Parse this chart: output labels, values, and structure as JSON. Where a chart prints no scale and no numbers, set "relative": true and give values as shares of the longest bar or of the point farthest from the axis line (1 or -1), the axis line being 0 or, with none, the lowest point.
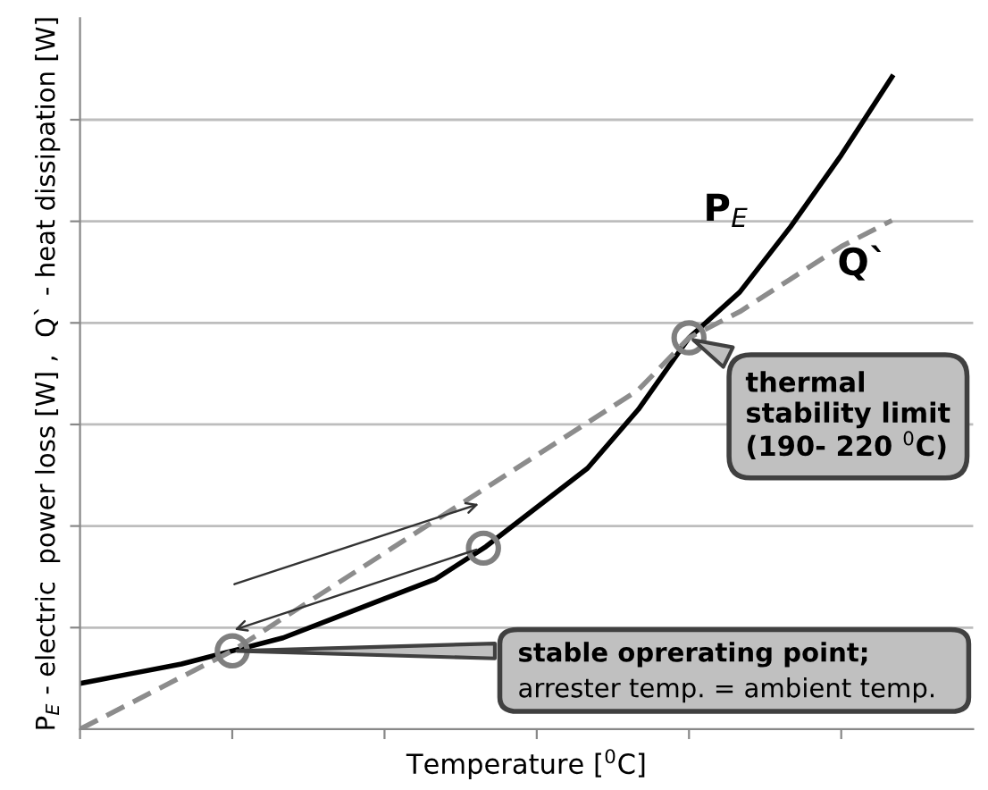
{
  "chart_data": {
    "type": "line",
    "relative": true,
    "xlabel": "Temperature [$^{0}$C]",
    "ylabel": "P$_{E}$ - electric  power loss [W] ,  Q` - heat dissipation [W]",
    "categories": [
      null,
      null,
      null,
      null,
      null,
      null,
      null,
      null,
      null,
      null,
      null,
      null,
      null,
      null,
      null,
      null,
      null
    ],
    "series": [
      {
        "name": "P$_{E}$",
        "color": "#000000",
        "line_style": "solid",
        "values": [
          0.07,
          0.085,
          0.1,
          0.12,
          0.14,
          0.17,
          0.2,
          0.23,
          0.28,
          0.34,
          0.4,
          0.49,
          0.6,
          0.67,
          0.77,
          0.88,
          1.0
        ]
      },
      {
        "name": "Q`",
        "color": "#8c8c8c",
        "line_style": "dashed",
        "values": [
          0.0,
          0.04,
          0.08,
          0.12,
          0.17,
          0.22,
          0.27,
          0.32,
          0.37,
          0.42,
          0.47,
          0.52,
          0.6,
          0.64,
          0.69,
          0.74,
          0.78
        ]
      }
    ],
    "annotations": [
      "thermal\nstability limit\n(190- 220 $^{0}$C)",
      "stable oprerating point;",
      "arrester temp. = ambient temp."
    ],
    "grid": "y",
    "legend": false,
    "tick_labels": false
  }
}
